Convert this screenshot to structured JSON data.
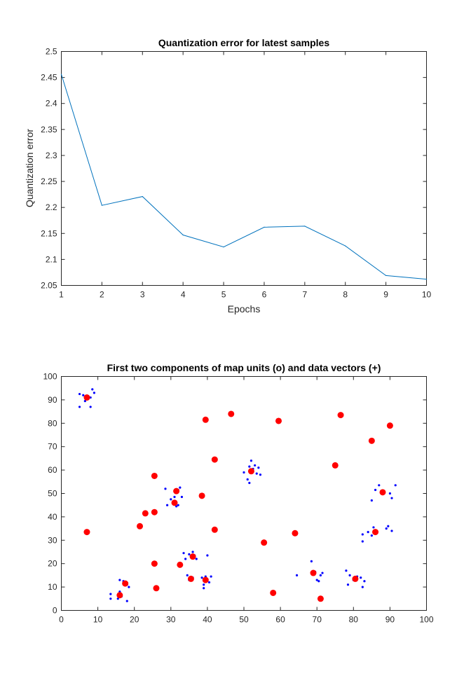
{
  "chart_data": [
    {
      "type": "line",
      "title": "Quantization error for latest samples",
      "xlabel": "Epochs",
      "ylabel": "Quantization error",
      "xlim": [
        1,
        10
      ],
      "ylim": [
        2.05,
        2.5
      ],
      "xticks": [
        "1",
        "2",
        "3",
        "4",
        "5",
        "6",
        "7",
        "8",
        "9",
        "10"
      ],
      "yticks": [
        "2.05",
        "2.1",
        "2.15",
        "2.2",
        "2.25",
        "2.3",
        "2.35",
        "2.4",
        "2.45",
        "2.5"
      ],
      "grid": false,
      "series": [
        {
          "color": "#0072bd",
          "x": [
            1,
            2,
            3,
            4,
            5,
            6,
            7,
            8,
            9,
            10
          ],
          "y": [
            2.456,
            2.204,
            2.221,
            2.147,
            2.124,
            2.162,
            2.164,
            2.126,
            2.069,
            2.062
          ]
        }
      ]
    },
    {
      "type": "scatter",
      "title": "First two components of map units (o) and data vectors (+)",
      "xlabel": "",
      "ylabel": "",
      "xlim": [
        0,
        100
      ],
      "ylim": [
        0,
        100
      ],
      "xticks": [
        "0",
        "10",
        "20",
        "30",
        "40",
        "50",
        "60",
        "70",
        "80",
        "90",
        "100"
      ],
      "yticks": [
        "0",
        "10",
        "20",
        "30",
        "40",
        "50",
        "60",
        "70",
        "80",
        "90",
        "100"
      ],
      "grid": false,
      "series": [
        {
          "marker": "dot",
          "color": "#0000ff",
          "points": [
            [
              5,
              92.5
            ],
            [
              5,
              87
            ],
            [
              6.5,
              89.5
            ],
            [
              6,
              92
            ],
            [
              8,
              87
            ],
            [
              8,
              91
            ],
            [
              8.5,
              94.5
            ],
            [
              9,
              93
            ],
            [
              7,
              91.5
            ],
            [
              13.5,
              5
            ],
            [
              13.5,
              7
            ],
            [
              15.5,
              5
            ],
            [
              16,
              8
            ],
            [
              16,
              13
            ],
            [
              17,
              12.5
            ],
            [
              18,
              11
            ],
            [
              18.5,
              10
            ],
            [
              18,
              4
            ],
            [
              16.5,
              6
            ],
            [
              28.5,
              52
            ],
            [
              29,
              45
            ],
            [
              30,
              47.5
            ],
            [
              31,
              48.5
            ],
            [
              31.5,
              44.5
            ],
            [
              32,
              51.5
            ],
            [
              32.5,
              52.5
            ],
            [
              33,
              48.5
            ],
            [
              32,
              45
            ],
            [
              31,
              46.5
            ],
            [
              33.5,
              24.5
            ],
            [
              34,
              22
            ],
            [
              35,
              24
            ],
            [
              36,
              25
            ],
            [
              37,
              22
            ],
            [
              36.5,
              23.5
            ],
            [
              35,
              13
            ],
            [
              34.5,
              15
            ],
            [
              36,
              14
            ],
            [
              38.5,
              14
            ],
            [
              39,
              9.5
            ],
            [
              39.5,
              14.5
            ],
            [
              40.5,
              12
            ],
            [
              41,
              14.5
            ],
            [
              40,
              23.5
            ],
            [
              39,
              11
            ],
            [
              50,
              59
            ],
            [
              51,
              56
            ],
            [
              51.5,
              54.5
            ],
            [
              51.5,
              61.5
            ],
            [
              52,
              64
            ],
            [
              52.5,
              60.5
            ],
            [
              53,
              62
            ],
            [
              53.5,
              58.5
            ],
            [
              54.5,
              58
            ],
            [
              54,
              61
            ],
            [
              64.5,
              15
            ],
            [
              68.5,
              21
            ],
            [
              69.5,
              16.5
            ],
            [
              70,
              13
            ],
            [
              70.5,
              12.5
            ],
            [
              71,
              15
            ],
            [
              71.5,
              16
            ],
            [
              78,
              17
            ],
            [
              78.5,
              11
            ],
            [
              79,
              15
            ],
            [
              80,
              13
            ],
            [
              81,
              14.5
            ],
            [
              82,
              14
            ],
            [
              82.5,
              10
            ],
            [
              83,
              12.5
            ],
            [
              82.5,
              29.5
            ],
            [
              82.5,
              32.5
            ],
            [
              84,
              33.5
            ],
            [
              85,
              32
            ],
            [
              85.5,
              35.5
            ],
            [
              86,
              33
            ],
            [
              85,
              47
            ],
            [
              86,
              51.5
            ],
            [
              87,
              53.5
            ],
            [
              88,
              50
            ],
            [
              89,
              35
            ],
            [
              89.5,
              36
            ],
            [
              90,
              50
            ],
            [
              90.5,
              48
            ],
            [
              90.5,
              34
            ],
            [
              91.5,
              53.5
            ]
          ]
        },
        {
          "marker": "circle",
          "color": "#ff0000",
          "points": [
            [
              7,
              91
            ],
            [
              7,
              33.5
            ],
            [
              16,
              6.5
            ],
            [
              17.5,
              11.5
            ],
            [
              21.5,
              36
            ],
            [
              23,
              41.5
            ],
            [
              25.5,
              57.5
            ],
            [
              25.5,
              42
            ],
            [
              25.5,
              20
            ],
            [
              26,
              9.5
            ],
            [
              31,
              46
            ],
            [
              31.5,
              51
            ],
            [
              32.5,
              19.5
            ],
            [
              35.5,
              13.5
            ],
            [
              36,
              23
            ],
            [
              38.5,
              49
            ],
            [
              39.5,
              81.5
            ],
            [
              39.5,
              13
            ],
            [
              42,
              34.5
            ],
            [
              42,
              64.5
            ],
            [
              46.5,
              84
            ],
            [
              52,
              59.5
            ],
            [
              55.5,
              29
            ],
            [
              58,
              7.5
            ],
            [
              59.5,
              81
            ],
            [
              64,
              33
            ],
            [
              69,
              16
            ],
            [
              71,
              5
            ],
            [
              75,
              62
            ],
            [
              76.5,
              83.5
            ],
            [
              80.5,
              13.5
            ],
            [
              85,
              72.5
            ],
            [
              86,
              33.5
            ],
            [
              88,
              50.5
            ],
            [
              90,
              79
            ]
          ]
        }
      ]
    }
  ]
}
